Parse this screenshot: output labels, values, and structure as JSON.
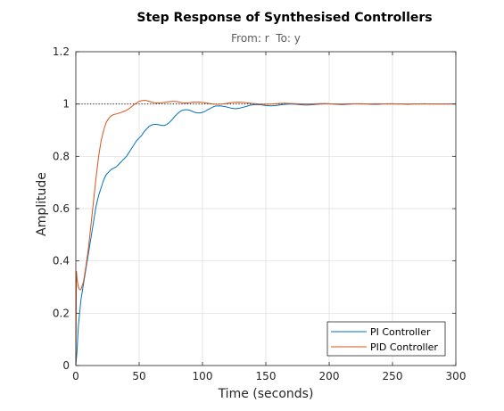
{
  "chart_data": {
    "type": "line",
    "title": "Step Response of Synthesised Controllers",
    "subtitle": "From: r  To: y",
    "xlabel": "Time (seconds)",
    "ylabel": "Amplitude",
    "xlim": [
      0,
      300
    ],
    "ylim": [
      0,
      1.2
    ],
    "xticks": [
      0,
      50,
      100,
      150,
      200,
      250,
      300
    ],
    "yticks": [
      0,
      0.2,
      0.4,
      0.6,
      0.8,
      1,
      1.2
    ],
    "xtick_labels": [
      "0",
      "50",
      "100",
      "150",
      "200",
      "250",
      "300"
    ],
    "ytick_labels": [
      "0",
      "0.2",
      "0.4",
      "0.6",
      "0.8",
      "1",
      "1.2"
    ],
    "grid": true,
    "legend_position": "bottom-right",
    "reference_line": {
      "y": 1,
      "style": "dotted",
      "color": "#000000"
    },
    "series": [
      {
        "name": "PI Controller",
        "color": "#0072BD",
        "x": [
          0,
          1,
          2,
          4,
          6,
          8,
          10,
          12,
          14,
          16,
          18,
          20,
          22,
          24,
          26,
          28,
          30,
          32,
          34,
          36,
          38,
          40,
          42,
          44,
          46,
          48,
          50,
          52,
          54,
          56,
          58,
          60,
          62,
          64,
          66,
          68,
          70,
          72,
          74,
          76,
          78,
          80,
          82,
          84,
          86,
          88,
          90,
          92,
          94,
          96,
          98,
          100,
          102,
          104,
          106,
          108,
          110,
          114,
          118,
          122,
          126,
          130,
          134,
          138,
          142,
          146,
          150,
          154,
          158,
          162,
          166,
          170,
          174,
          178,
          182,
          186,
          190,
          194,
          198,
          202,
          206,
          210,
          214,
          218,
          222,
          226,
          230,
          234,
          238,
          242,
          246,
          250,
          254,
          258,
          262,
          266,
          270,
          275,
          280,
          285,
          290,
          295,
          300
        ],
        "y": [
          0,
          0.06,
          0.15,
          0.25,
          0.31,
          0.37,
          0.43,
          0.49,
          0.55,
          0.61,
          0.65,
          0.68,
          0.71,
          0.73,
          0.74,
          0.75,
          0.755,
          0.76,
          0.77,
          0.78,
          0.79,
          0.8,
          0.815,
          0.83,
          0.845,
          0.86,
          0.87,
          0.88,
          0.895,
          0.905,
          0.915,
          0.92,
          0.922,
          0.922,
          0.92,
          0.918,
          0.918,
          0.922,
          0.93,
          0.94,
          0.952,
          0.962,
          0.97,
          0.976,
          0.978,
          0.978,
          0.976,
          0.972,
          0.968,
          0.966,
          0.966,
          0.968,
          0.972,
          0.978,
          0.983,
          0.988,
          0.992,
          0.993,
          0.99,
          0.985,
          0.982,
          0.985,
          0.99,
          0.996,
          0.998,
          0.997,
          0.994,
          0.993,
          0.994,
          0.997,
          0.999,
          1.0,
          0.999,
          0.997,
          0.996,
          0.997,
          0.999,
          1.0,
          1.001,
          1.0,
          0.999,
          0.998,
          0.999,
          1.0,
          1.001,
          1.001,
          1.0,
          0.999,
          0.999,
          1.0,
          1.001,
          1.001,
          1.0,
          1.0,
          0.999,
          1.0,
          1.0,
          1.001,
          1.0,
          1.0,
          1.0,
          1.0,
          1.0
        ]
      },
      {
        "name": "PID Controller",
        "color": "#D95319",
        "x": [
          0,
          0.5,
          1,
          2,
          3,
          4,
          6,
          8,
          10,
          12,
          14,
          16,
          18,
          20,
          22,
          24,
          26,
          28,
          30,
          32,
          34,
          36,
          38,
          40,
          42,
          44,
          46,
          48,
          50,
          52,
          54,
          56,
          58,
          60,
          62,
          64,
          66,
          68,
          70,
          72,
          74,
          76,
          78,
          80,
          82,
          84,
          86,
          88,
          90,
          92,
          94,
          96,
          98,
          100,
          104,
          108,
          112,
          116,
          120,
          124,
          128,
          132,
          136,
          140,
          145,
          150,
          155,
          160,
          165,
          170,
          175,
          180,
          185,
          190,
          195,
          200,
          205,
          210,
          215,
          220,
          225,
          230,
          235,
          240,
          245,
          250,
          255,
          260,
          265,
          270,
          275,
          280,
          285,
          290,
          295,
          300
        ],
        "y": [
          0,
          0.36,
          0.33,
          0.3,
          0.29,
          0.29,
          0.32,
          0.38,
          0.45,
          0.54,
          0.63,
          0.72,
          0.8,
          0.86,
          0.9,
          0.93,
          0.945,
          0.955,
          0.96,
          0.962,
          0.965,
          0.968,
          0.972,
          0.976,
          0.982,
          0.99,
          0.998,
          1.004,
          1.01,
          1.013,
          1.014,
          1.013,
          1.01,
          1.007,
          1.005,
          1.004,
          1.004,
          1.005,
          1.006,
          1.008,
          1.009,
          1.01,
          1.01,
          1.009,
          1.007,
          1.005,
          1.004,
          1.004,
          1.005,
          1.007,
          1.008,
          1.008,
          1.007,
          1.006,
          1.003,
          1.0,
          0.999,
          1.0,
          1.003,
          1.006,
          1.007,
          1.006,
          1.004,
          1.002,
          1.0,
          0.999,
          1.0,
          1.002,
          1.003,
          1.002,
          1.001,
          1.0,
          1.0,
          1.001,
          1.002,
          1.001,
          1.0,
          1.0,
          1.001,
          1.001,
          1.0,
          1.0,
          1.001,
          1.001,
          1.0,
          1.0,
          1.0,
          1.0,
          1.0,
          1.0,
          1.0,
          1.0,
          1.0,
          1.0,
          1.0,
          1.0
        ]
      }
    ]
  }
}
